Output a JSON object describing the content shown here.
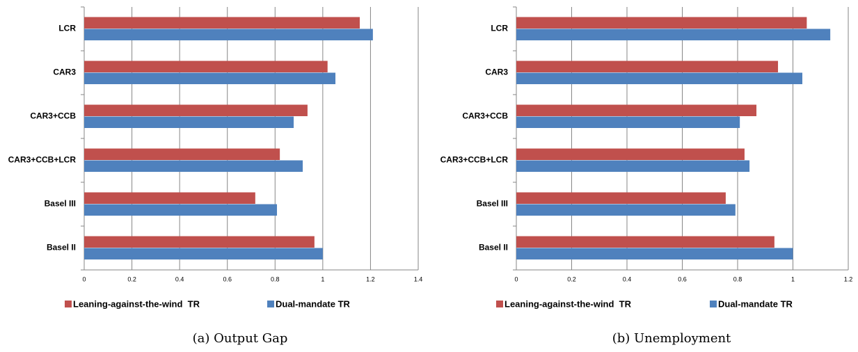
{
  "chart_data": [
    {
      "type": "barh",
      "caption": "(a) Output Gap",
      "categories": [
        "LCR",
        "CAR3",
        "CAR3+CCB",
        "CAR3+CCB+LCR",
        "Basel III",
        "Basel II"
      ],
      "series": [
        {
          "name": "Leaning-against-the-wind  TR",
          "color": "#c0504d",
          "values": [
            1.155,
            1.02,
            0.936,
            0.82,
            0.717,
            0.965
          ]
        },
        {
          "name": "Dual-mandate TR",
          "color": "#4f81bd",
          "values": [
            1.21,
            1.053,
            0.878,
            0.916,
            0.808,
            1.0
          ]
        }
      ],
      "xlim": [
        0,
        1.4
      ],
      "xticks": [
        0,
        0.2,
        0.4,
        0.6,
        0.8,
        1,
        1.2,
        1.4
      ],
      "grid": true,
      "legend": "bottom"
    },
    {
      "type": "barh",
      "caption": "(b) Unemployment",
      "categories": [
        "LCR",
        "CAR3",
        "CAR3+CCB",
        "CAR3+CCB+LCR",
        "Basel III",
        "Basel II"
      ],
      "series": [
        {
          "name": "Leaning-against-the-wind  TR",
          "color": "#c0504d",
          "values": [
            1.05,
            0.946,
            0.868,
            0.825,
            0.757,
            0.933
          ]
        },
        {
          "name": "Dual-mandate TR",
          "color": "#4f81bd",
          "values": [
            1.135,
            1.034,
            0.808,
            0.843,
            0.792,
            1.0
          ]
        }
      ],
      "xlim": [
        0,
        1.2
      ],
      "xticks": [
        0,
        0.2,
        0.4,
        0.6,
        0.8,
        1,
        1.2
      ],
      "grid": true,
      "legend": "bottom"
    }
  ]
}
